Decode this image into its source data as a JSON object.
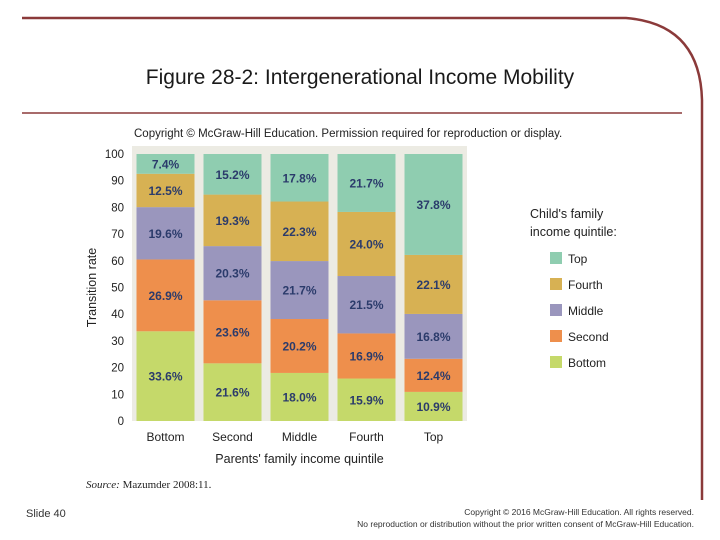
{
  "slide": {
    "title": "Figure 28-2: Intergenerational Income Mobility",
    "slide_number": "Slide 40",
    "copyright_line1": "Copyright © 2016 McGraw-Hill Education. All rights reserved.",
    "copyright_line2": "No reproduction or distribution without the prior written consent of McGraw-Hill Education.",
    "frame_color": "#8b3a3a"
  },
  "figure": {
    "permission_note": "Copyright © McGraw-Hill Education. Permission required for reproduction or display.",
    "source_label": "Source:",
    "source_text": "Mazumder 2008:11."
  },
  "chart_data": {
    "type": "bar",
    "stacked": true,
    "title": "",
    "xlabel": "Parents' family income quintile",
    "ylabel": "Transition rate",
    "ylim": [
      0,
      100
    ],
    "yticks": [
      0,
      10,
      20,
      30,
      40,
      50,
      60,
      70,
      80,
      90,
      100
    ],
    "grid": false,
    "legend_title_line1": "Child's family",
    "legend_title_line2": "income quintile:",
    "legend_position": "right",
    "categories": [
      "Bottom",
      "Second",
      "Middle",
      "Fourth",
      "Top"
    ],
    "series": [
      {
        "name": "Bottom",
        "color": "#c5d96a",
        "values": [
          33.6,
          21.6,
          18.0,
          15.9,
          10.9
        ],
        "labels": [
          "33.6%",
          "21.6%",
          "18.0%",
          "15.9%",
          "10.9%"
        ]
      },
      {
        "name": "Second",
        "color": "#ee8f4c",
        "values": [
          26.9,
          23.6,
          20.2,
          16.9,
          12.4
        ],
        "labels": [
          "26.9%",
          "23.6%",
          "20.2%",
          "16.9%",
          "12.4%"
        ]
      },
      {
        "name": "Middle",
        "color": "#9a96bd",
        "values": [
          19.6,
          20.3,
          21.7,
          21.5,
          16.8
        ],
        "labels": [
          "19.6%",
          "20.3%",
          "21.7%",
          "21.5%",
          "16.8%"
        ]
      },
      {
        "name": "Fourth",
        "color": "#d7b153",
        "values": [
          12.5,
          19.3,
          22.3,
          24.0,
          22.1
        ],
        "labels": [
          "12.5%",
          "19.3%",
          "22.3%",
          "24.0%",
          "22.1%"
        ]
      },
      {
        "name": "Top",
        "color": "#8fcdb0",
        "values": [
          7.4,
          15.2,
          17.8,
          21.7,
          37.8
        ],
        "labels": [
          "7.4%",
          "15.2%",
          "17.8%",
          "21.7%",
          "37.8%"
        ]
      }
    ],
    "legend_order": [
      "Top",
      "Fourth",
      "Middle",
      "Second",
      "Bottom"
    ],
    "label_color": "#2b3b6b",
    "plot_background": "#ecebe3"
  }
}
